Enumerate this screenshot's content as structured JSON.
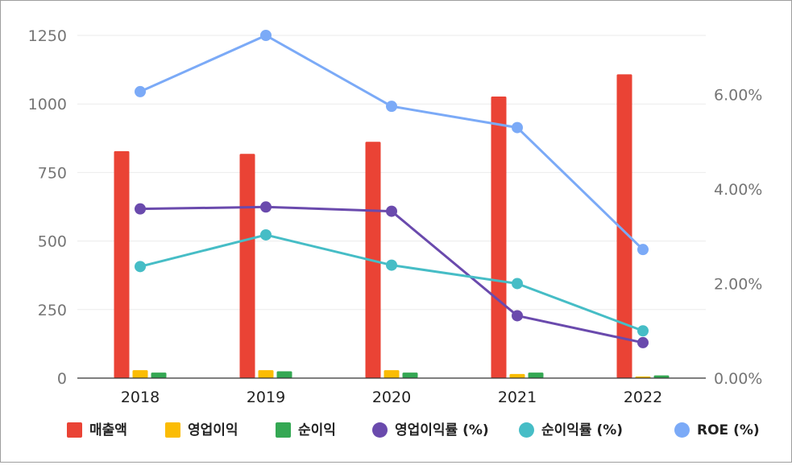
{
  "chart_data": {
    "type": "bar+line",
    "categories": [
      "2018",
      "2019",
      "2020",
      "2021",
      "2022"
    ],
    "left_axis": {
      "ticks": [
        "0",
        "250",
        "500",
        "750",
        "1000",
        "1250"
      ],
      "ylim": [
        0,
        1250
      ]
    },
    "right_axis": {
      "ticks": [
        "0.00%",
        "2.00%",
        "4.00%",
        "6.00%"
      ],
      "ylim": [
        0,
        7.25
      ]
    },
    "bar_series": [
      {
        "name": "매출액",
        "color": "#ea4335",
        "values": [
          828,
          818,
          862,
          1027,
          1108
        ]
      },
      {
        "name": "영업이익",
        "color": "#fbbc04",
        "values": [
          29,
          29,
          29,
          15,
          6
        ]
      },
      {
        "name": "순이익",
        "color": "#34a853",
        "values": [
          20,
          25,
          20,
          20,
          10
        ]
      }
    ],
    "line_series": [
      {
        "name": "영업이익률 (%)",
        "color": "#6a4aad",
        "values": [
          3.58,
          3.62,
          3.53,
          1.32,
          0.75
        ]
      },
      {
        "name": "순이익률 (%)",
        "color": "#46bdc6",
        "values": [
          2.36,
          3.03,
          2.39,
          2.0,
          1.0
        ]
      },
      {
        "name": "ROE (%)",
        "color": "#7baaf7",
        "values": [
          6.06,
          7.25,
          5.75,
          5.3,
          2.72
        ]
      }
    ],
    "grid": true,
    "legend_position": "bottom"
  }
}
